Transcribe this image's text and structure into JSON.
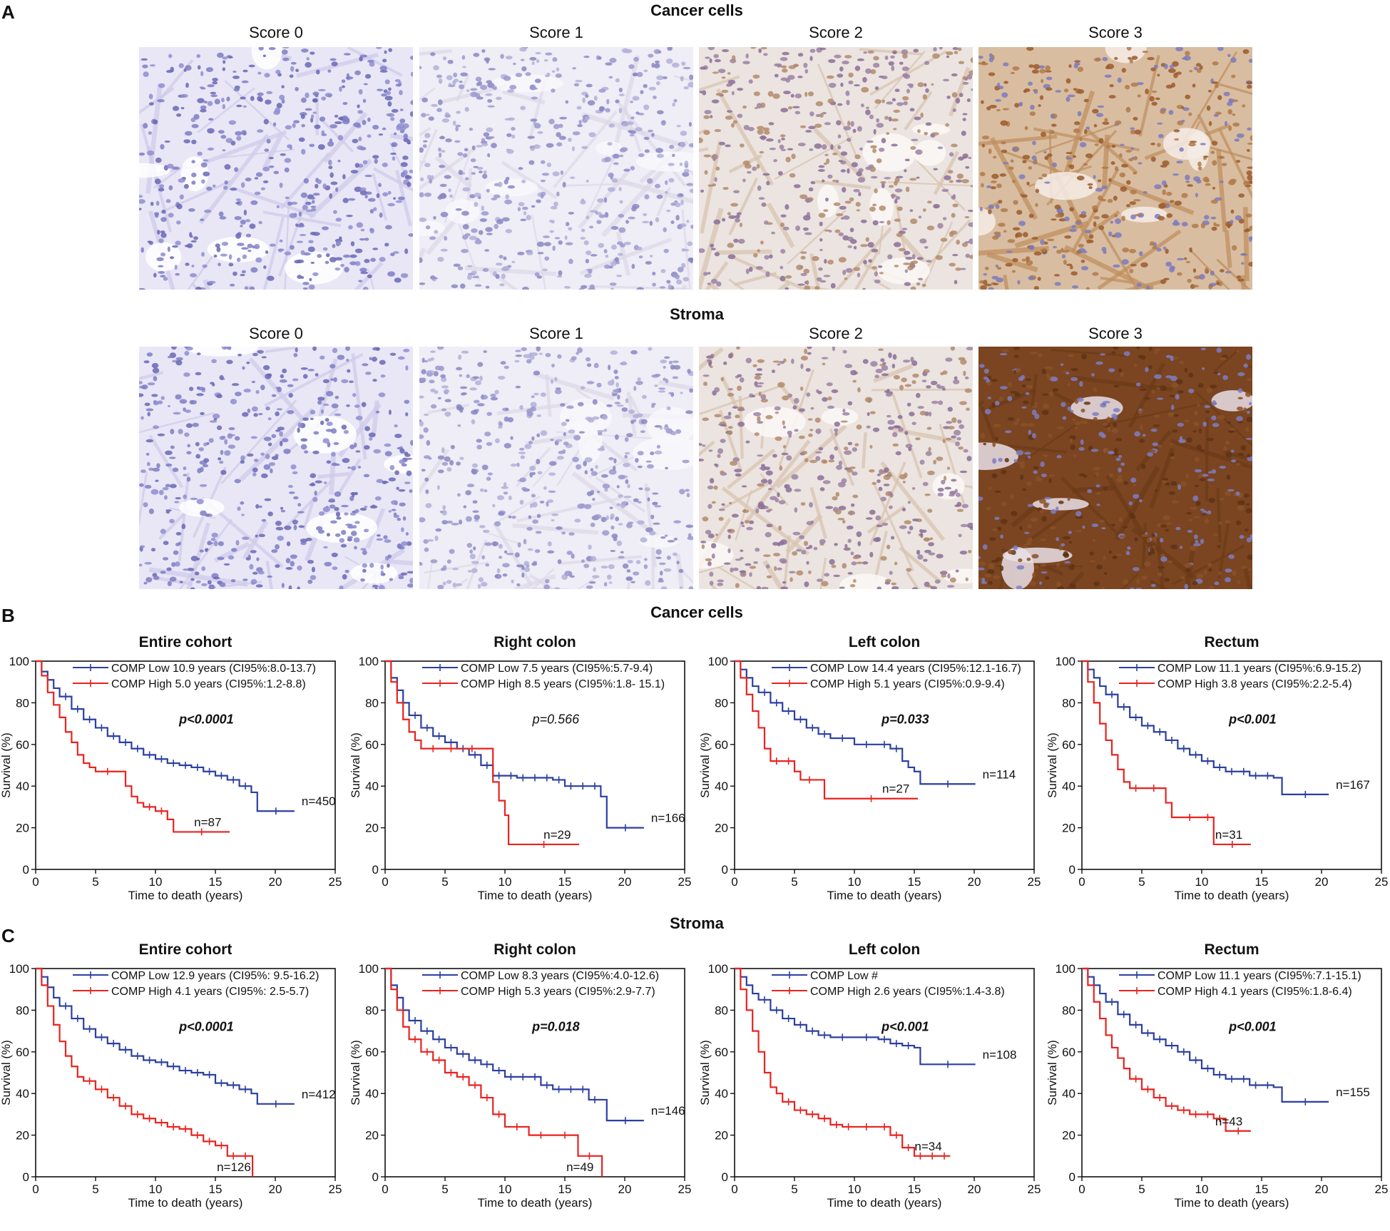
{
  "figure": {
    "panel_a_letter": "A",
    "panel_b_letter": "B",
    "panel_c_letter": "C",
    "section_titles": {
      "a_cancer": "Cancer cells",
      "a_stroma": "Stroma",
      "b_cancer": "Cancer cells",
      "c_stroma": "Stroma"
    },
    "score_labels": [
      "Score 0",
      "Score 1",
      "Score 2",
      "Score 3"
    ],
    "colors": {
      "low": "#2b3fa0",
      "high": "#e8231f",
      "hematoxylin": "#6c6ab8",
      "dab": "#8a4a20"
    }
  },
  "chart_data": [
    {
      "type": "line",
      "id": "B1",
      "title": "Entire cohort",
      "xlabel": "Time to death (years)",
      "ylabel": "Survival (%)",
      "xlim": [
        0,
        25
      ],
      "ylim": [
        0,
        100
      ],
      "xticks": [
        0,
        5,
        10,
        15,
        20,
        25
      ],
      "yticks": [
        0,
        20,
        40,
        60,
        80,
        100
      ],
      "pvalue": "p<0.0001",
      "pvalue_bold": true,
      "legend": [
        "COMP Low 10.9 years (CI95%:8.0-13.7)",
        "COMP High 5.0 years (CI95%:1.2-8.8)"
      ],
      "series": [
        {
          "name": "COMP Low",
          "n_label": "n=450",
          "x": [
            0,
            0.5,
            1,
            1.5,
            2,
            3,
            4,
            5,
            6,
            7,
            8,
            9,
            10,
            11,
            12,
            13,
            14,
            15,
            16,
            17,
            18,
            18.5,
            21.6
          ],
          "y": [
            100,
            95,
            91,
            87,
            83,
            77,
            72,
            68,
            64,
            61,
            58,
            55,
            53,
            51,
            50,
            49,
            47,
            45,
            43,
            40,
            37,
            28,
            28
          ]
        },
        {
          "name": "COMP High",
          "n_label": "n=87",
          "x": [
            0,
            0.5,
            1,
            1.5,
            2,
            2.5,
            3,
            3.5,
            4,
            4.5,
            5,
            7,
            7.5,
            8,
            8.5,
            9,
            10,
            11,
            11.5,
            16.2
          ],
          "y": [
            100,
            93,
            85,
            79,
            73,
            66,
            61,
            55,
            51,
            49,
            47,
            47,
            40,
            35,
            32,
            30,
            28,
            24,
            18,
            18
          ]
        }
      ]
    },
    {
      "type": "line",
      "id": "B2",
      "title": "Right colon",
      "xlabel": "Time to death (years)",
      "ylabel": "Survival (%)",
      "xlim": [
        0,
        25
      ],
      "ylim": [
        0,
        100
      ],
      "xticks": [
        0,
        5,
        10,
        15,
        20,
        25
      ],
      "yticks": [
        0,
        20,
        40,
        60,
        80,
        100
      ],
      "pvalue": "p=0.566",
      "pvalue_bold": false,
      "legend": [
        "COMP Low 7.5 years (CI95%:5.7-9.4)",
        "COMP High 8.5 years (CI95%:1.8- 15.1)"
      ],
      "series": [
        {
          "name": "COMP Low",
          "n_label": "n=166",
          "x": [
            0,
            0.5,
            1,
            1.5,
            2,
            3,
            4,
            5,
            6,
            7,
            8,
            9,
            10,
            11,
            12,
            13,
            14,
            15,
            16,
            17,
            18,
            18.5,
            21.6
          ],
          "y": [
            100,
            92,
            86,
            80,
            74,
            68,
            64,
            61,
            58,
            55,
            50,
            45,
            45,
            44,
            44,
            44,
            43,
            40,
            40,
            40,
            35,
            20,
            20
          ]
        },
        {
          "name": "COMP High",
          "n_label": "n=29",
          "x": [
            0,
            0.5,
            1,
            1.5,
            2,
            2.5,
            3,
            5,
            6,
            8.5,
            9,
            9.5,
            10,
            10.3,
            16.2
          ],
          "y": [
            100,
            90,
            80,
            72,
            66,
            62,
            58,
            58,
            58,
            58,
            42,
            33,
            26,
            12,
            12
          ]
        }
      ]
    },
    {
      "type": "line",
      "id": "B3",
      "title": "Left colon",
      "xlabel": "Time to death (years)",
      "ylabel": "Survival (%)",
      "xlim": [
        0,
        25
      ],
      "ylim": [
        0,
        100
      ],
      "xticks": [
        0,
        5,
        10,
        15,
        20,
        25
      ],
      "yticks": [
        0,
        20,
        40,
        60,
        80,
        100
      ],
      "pvalue": "p=0.033",
      "pvalue_bold": true,
      "legend": [
        "COMP Low 14.4 years (CI95%:12.1-16.7)",
        "COMP High 5.1 years (CI95%:0.9-9.4)"
      ],
      "series": [
        {
          "name": "COMP Low",
          "n_label": "n=114",
          "x": [
            0,
            0.5,
            1,
            1.5,
            2,
            3,
            4,
            5,
            6,
            7,
            8,
            10,
            12,
            13,
            14,
            14.5,
            15,
            15.5,
            20.1
          ],
          "y": [
            100,
            96,
            92,
            88,
            85,
            80,
            76,
            72,
            68,
            65,
            63,
            60,
            60,
            58,
            52,
            49,
            47,
            41,
            41
          ]
        },
        {
          "name": "COMP High",
          "n_label": "n=27",
          "x": [
            0,
            0.5,
            1,
            1.5,
            2,
            2.5,
            3,
            4,
            5,
            5.5,
            7,
            7.5,
            15.3
          ],
          "y": [
            100,
            92,
            84,
            76,
            68,
            58,
            52,
            52,
            47,
            43,
            43,
            34,
            34
          ]
        }
      ]
    },
    {
      "type": "line",
      "id": "B4",
      "title": "Rectum",
      "xlabel": "Time to death (years)",
      "ylabel": "Survival (%)",
      "xlim": [
        0,
        25
      ],
      "ylim": [
        0,
        100
      ],
      "xticks": [
        0,
        5,
        10,
        15,
        20,
        25
      ],
      "yticks": [
        0,
        20,
        40,
        60,
        80,
        100
      ],
      "pvalue": "p<0.001",
      "pvalue_bold": true,
      "legend": [
        "COMP Low 11.1 years (CI95%:6.9-15.2)",
        "COMP High 3.8 years (CI95%:2.2-5.4)"
      ],
      "series": [
        {
          "name": "COMP Low",
          "n_label": "n=167",
          "x": [
            0,
            0.5,
            1,
            1.5,
            2,
            3,
            4,
            5,
            6,
            7,
            8,
            9,
            10,
            11,
            12,
            13,
            14,
            15,
            16,
            16.7,
            20.6
          ],
          "y": [
            100,
            96,
            92,
            88,
            84,
            78,
            73,
            69,
            66,
            62,
            58,
            55,
            52,
            49,
            47,
            47,
            45,
            45,
            44,
            36,
            36
          ]
        },
        {
          "name": "COMP High",
          "n_label": "n=31",
          "x": [
            0,
            0.5,
            1,
            1.5,
            2,
            2.5,
            3,
            3.5,
            4,
            5,
            7,
            7.5,
            8,
            10,
            11,
            14.1
          ],
          "y": [
            100,
            90,
            80,
            70,
            62,
            55,
            48,
            42,
            39,
            39,
            32,
            25,
            25,
            25,
            12,
            12
          ]
        }
      ]
    },
    {
      "type": "line",
      "id": "C1",
      "title": "Entire cohort",
      "xlabel": "Time to death (years)",
      "ylabel": "Survival (%)",
      "xlim": [
        0,
        25
      ],
      "ylim": [
        0,
        100
      ],
      "xticks": [
        0,
        5,
        10,
        15,
        20,
        25
      ],
      "yticks": [
        0,
        20,
        40,
        60,
        80,
        100
      ],
      "pvalue": "p<0.0001",
      "pvalue_bold": true,
      "legend": [
        "COMP Low 12.9 years (CI95%: 9.5-16.2)",
        "COMP High  4.1 years (CI95%: 2.5-5.7)"
      ],
      "series": [
        {
          "name": "COMP Low",
          "n_label": "n=412",
          "x": [
            0,
            0.5,
            1,
            1.5,
            2,
            3,
            4,
            5,
            6,
            7,
            8,
            9,
            10,
            11,
            12,
            13,
            14,
            15,
            16,
            17,
            18,
            18.5,
            21.6
          ],
          "y": [
            100,
            96,
            91,
            86,
            82,
            76,
            71,
            67,
            64,
            61,
            58,
            56,
            55,
            53,
            51,
            50,
            49,
            45,
            44,
            42,
            40,
            35,
            35
          ]
        },
        {
          "name": "COMP High",
          "n_label": "n=126",
          "x": [
            0,
            0.5,
            1,
            1.5,
            2,
            2.5,
            3,
            3.5,
            4,
            5,
            6,
            7,
            8,
            9,
            10,
            11,
            12,
            13,
            14,
            15,
            16,
            17,
            18,
            18.1
          ],
          "y": [
            100,
            92,
            82,
            73,
            65,
            58,
            53,
            48,
            46,
            42,
            38,
            34,
            30,
            28,
            26,
            24,
            23,
            20,
            17,
            15,
            10,
            10,
            10,
            0
          ]
        }
      ]
    },
    {
      "type": "line",
      "id": "C2",
      "title": "Right colon",
      "xlabel": "Time to death (years)",
      "ylabel": "Survival (%)",
      "xlim": [
        0,
        25
      ],
      "ylim": [
        0,
        100
      ],
      "xticks": [
        0,
        5,
        10,
        15,
        20,
        25
      ],
      "yticks": [
        0,
        20,
        40,
        60,
        80,
        100
      ],
      "pvalue": "p=0.018",
      "pvalue_bold": true,
      "legend": [
        "COMP Low 8.3 years (CI95%:4.0-12.6)",
        "COMP High 5.3 years (CI95%:2.9-7.7)"
      ],
      "series": [
        {
          "name": "COMP Low",
          "n_label": "n=146",
          "x": [
            0,
            0.5,
            1,
            1.5,
            2,
            3,
            4,
            5,
            6,
            7,
            8,
            9,
            10,
            11,
            12,
            13,
            14,
            15,
            16,
            17,
            18,
            18.5,
            21.6
          ],
          "y": [
            100,
            92,
            86,
            80,
            75,
            70,
            66,
            62,
            59,
            56,
            54,
            51,
            48,
            48,
            48,
            44,
            42,
            42,
            42,
            37,
            37,
            27,
            27
          ]
        },
        {
          "name": "COMP High",
          "n_label": "n=49",
          "x": [
            0,
            0.5,
            1,
            1.5,
            2,
            3,
            4,
            5,
            6,
            7,
            8,
            9,
            10,
            12,
            14,
            16,
            16.1,
            18,
            18.1
          ],
          "y": [
            100,
            90,
            80,
            72,
            66,
            60,
            56,
            50,
            48,
            44,
            38,
            30,
            24,
            20,
            20,
            20,
            10,
            10,
            0
          ]
        }
      ]
    },
    {
      "type": "line",
      "id": "C3",
      "title": "Left colon",
      "xlabel": "Time to death (years)",
      "ylabel": "Survival (%)",
      "xlim": [
        0,
        25
      ],
      "ylim": [
        0,
        100
      ],
      "xticks": [
        0,
        5,
        10,
        15,
        20,
        25
      ],
      "yticks": [
        0,
        20,
        40,
        60,
        80,
        100
      ],
      "pvalue": "p<0.001",
      "pvalue_bold": true,
      "legend": [
        "COMP Low #",
        "COMP High 2.6 years (CI95%:1.4-3.8)"
      ],
      "series": [
        {
          "name": "COMP Low",
          "n_label": "n=108",
          "x": [
            0,
            0.5,
            1,
            1.5,
            2,
            3,
            4,
            5,
            6,
            7,
            8,
            10,
            12,
            13,
            14,
            15,
            15.5,
            20.1
          ],
          "y": [
            100,
            96,
            92,
            88,
            85,
            80,
            76,
            73,
            70,
            68,
            67,
            67,
            66,
            64,
            63,
            62,
            54,
            54
          ]
        },
        {
          "name": "COMP High",
          "n_label": "n=34",
          "x": [
            0,
            0.5,
            1,
            1.5,
            2,
            2.5,
            3,
            3.5,
            4,
            5,
            6,
            7,
            8,
            9,
            10,
            12,
            13,
            14,
            15,
            16,
            17,
            18
          ],
          "y": [
            100,
            90,
            80,
            70,
            60,
            50,
            43,
            40,
            36,
            32,
            30,
            28,
            25,
            24,
            24,
            24,
            20,
            14,
            10,
            10,
            10,
            10
          ]
        }
      ]
    },
    {
      "type": "line",
      "id": "C4",
      "title": "Rectum",
      "xlabel": "Time to death (years)",
      "ylabel": "Survival (%)",
      "xlim": [
        0,
        25
      ],
      "ylim": [
        0,
        100
      ],
      "xticks": [
        0,
        5,
        10,
        15,
        20,
        25
      ],
      "yticks": [
        0,
        20,
        40,
        60,
        80,
        100
      ],
      "pvalue": "p<0.001",
      "pvalue_bold": true,
      "legend": [
        "COMP Low 11.1 years (CI95%:7.1-15.1)",
        "COMP High 4.1 years (CI95%:1.8-6.4)"
      ],
      "series": [
        {
          "name": "COMP Low",
          "n_label": "n=155",
          "x": [
            0,
            0.5,
            1,
            1.5,
            2,
            3,
            4,
            5,
            6,
            7,
            8,
            9,
            10,
            11,
            12,
            13,
            14,
            15,
            16,
            16.7,
            20.6
          ],
          "y": [
            100,
            96,
            92,
            88,
            84,
            78,
            73,
            69,
            66,
            63,
            60,
            56,
            52,
            49,
            47,
            47,
            44,
            44,
            43,
            36,
            36
          ]
        },
        {
          "name": "COMP High",
          "n_label": "n=43",
          "x": [
            0,
            0.5,
            1,
            1.5,
            2,
            2.5,
            3,
            3.5,
            4,
            5,
            6,
            7,
            8,
            9,
            10,
            11,
            12,
            14.1
          ],
          "y": [
            100,
            92,
            84,
            76,
            68,
            62,
            57,
            52,
            47,
            42,
            38,
            34,
            32,
            30,
            30,
            28,
            22,
            22
          ]
        }
      ]
    }
  ]
}
